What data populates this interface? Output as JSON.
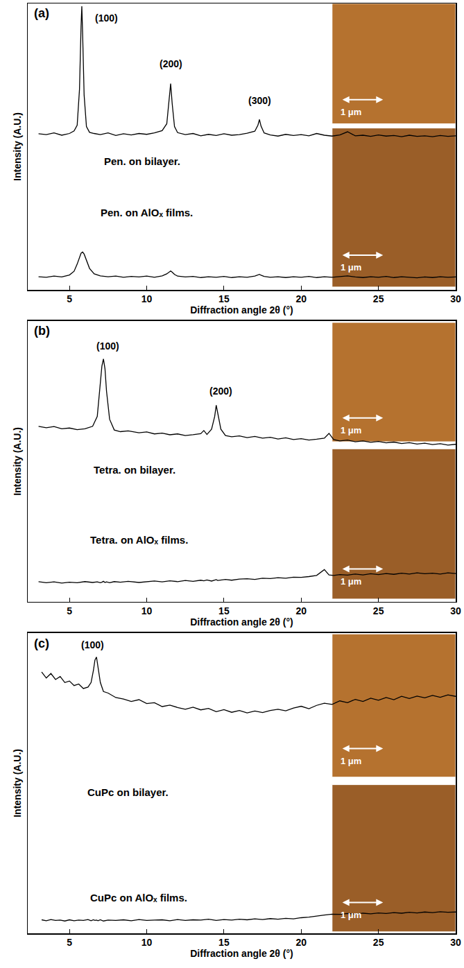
{
  "chart_data": [
    {
      "type": "line",
      "panel_label": "(a)",
      "x_label": "Diffraction angle 2θ (°)",
      "y_label": "Intensity (A.U.)",
      "xlim": [
        2.3,
        30
      ],
      "xticks": [
        5,
        10,
        15,
        20,
        25,
        30
      ],
      "ylim": [
        0,
        100
      ],
      "tick_labels": "x",
      "grid": false,
      "peak_labels": [
        "(100)",
        "(200)",
        "(300)"
      ],
      "scale_bars": [
        "1 μm",
        "1 μm"
      ],
      "series": [
        {
          "name": "Pen. on bilayer.",
          "color": "#000000",
          "x": [
            3.0,
            3.5,
            4.0,
            4.5,
            5.0,
            5.3,
            5.5,
            5.65,
            5.75,
            5.8,
            5.85,
            5.95,
            6.1,
            6.3,
            6.6,
            7.0,
            7.5,
            8.0,
            8.5,
            9.0,
            9.5,
            10.0,
            10.5,
            11.0,
            11.3,
            11.45,
            11.55,
            11.65,
            11.8,
            12.0,
            12.5,
            13.0,
            13.5,
            14.0,
            14.5,
            15.0,
            15.5,
            16.0,
            16.5,
            17.0,
            17.2,
            17.3,
            17.4,
            17.6,
            18.0,
            18.5,
            19.0,
            19.5,
            20.0,
            20.5,
            21.0,
            21.5,
            22.0,
            22.5,
            23.0,
            23.5,
            24.0,
            24.5,
            25.0,
            25.5,
            26.0,
            26.5,
            27.0,
            27.5,
            28.0,
            28.5,
            29.0,
            29.5,
            30.0
          ],
          "values": [
            54.5,
            54.2,
            54.8,
            54.0,
            54.6,
            55.5,
            57.5,
            70,
            92,
            99,
            90,
            68,
            57,
            55,
            54.6,
            54.2,
            54.8,
            53.9,
            54.5,
            54.1,
            54.6,
            54.3,
            54.8,
            55.6,
            58,
            66,
            72,
            65,
            57,
            54.9,
            54.2,
            54.6,
            53.8,
            54.3,
            53.9,
            54.5,
            54.0,
            54.2,
            54.7,
            55.4,
            57.5,
            59.5,
            57.2,
            54.8,
            54.1,
            53.7,
            54.3,
            53.9,
            54.2,
            53.8,
            54.6,
            54.0,
            53.7,
            54.1,
            55.2,
            53.8,
            54.0,
            53.6,
            54.1,
            53.7,
            53.9,
            53.5,
            54.0,
            53.6,
            53.8,
            53.5,
            53.9,
            53.6,
            53.8
          ]
        },
        {
          "name": "Pen. on AlOₓ films.",
          "color": "#000000",
          "x": [
            3.0,
            3.5,
            4.0,
            4.5,
            5.0,
            5.3,
            5.5,
            5.65,
            5.75,
            5.8,
            5.85,
            5.95,
            6.1,
            6.3,
            6.6,
            7.0,
            7.5,
            8.0,
            8.5,
            9.0,
            9.5,
            10.0,
            10.5,
            11.0,
            11.3,
            11.45,
            11.55,
            11.65,
            11.8,
            12.0,
            12.5,
            13.0,
            13.5,
            14.0,
            14.5,
            15.0,
            15.5,
            16.0,
            16.5,
            17.0,
            17.2,
            17.3,
            17.4,
            17.6,
            18.0,
            18.5,
            19.0,
            19.5,
            20.0,
            20.5,
            21.0,
            21.5,
            22.0,
            22.5,
            23.0,
            23.5,
            24.0,
            24.5,
            25.0,
            25.5,
            26.0,
            26.5,
            27.0,
            27.5,
            28.0,
            28.5,
            29.0,
            29.5,
            30.0
          ],
          "values": [
            4.6,
            4.4,
            4.8,
            4.5,
            5.2,
            6.5,
            9,
            11.5,
            12.8,
            13,
            13.2,
            12.5,
            10.5,
            7.5,
            5.6,
            4.9,
            4.6,
            4.8,
            4.4,
            4.7,
            4.5,
            4.8,
            4.4,
            4.9,
            5.6,
            6.3,
            6.6,
            6.2,
            5.4,
            4.8,
            4.5,
            4.7,
            4.3,
            4.6,
            4.4,
            4.7,
            4.3,
            4.6,
            4.4,
            4.8,
            5.2,
            5.4,
            5.1,
            4.7,
            4.4,
            4.6,
            4.3,
            4.6,
            4.4,
            4.7,
            4.3,
            4.6,
            4.4,
            4.7,
            4.9,
            4.5,
            4.3,
            4.6,
            4.4,
            4.7,
            4.3,
            4.6,
            4.4,
            4.2,
            4.5,
            4.3,
            4.6,
            4.4,
            4.5
          ]
        }
      ]
    },
    {
      "type": "line",
      "panel_label": "(b)",
      "x_label": "Diffraction angle 2θ (°)",
      "y_label": "Intensity (A.U.)",
      "xlim": [
        2.3,
        30
      ],
      "xticks": [
        5,
        10,
        15,
        20,
        25,
        30
      ],
      "ylim": [
        0,
        100
      ],
      "tick_labels": "x",
      "grid": false,
      "peak_labels": [
        "(100)",
        "(200)"
      ],
      "scale_bars": [
        "1 μm",
        "1 μm"
      ],
      "series": [
        {
          "name": "Tetra. on bilayer.",
          "color": "#000000",
          "x": [
            3,
            3.5,
            4,
            4.5,
            5,
            5.5,
            6,
            6.5,
            6.8,
            7.0,
            7.1,
            7.2,
            7.3,
            7.4,
            7.6,
            7.9,
            8.3,
            8.8,
            9.5,
            10,
            10.5,
            11,
            11.5,
            12,
            12.5,
            13,
            13.5,
            13.7,
            13.9,
            14.2,
            14.4,
            14.5,
            14.6,
            14.8,
            15.1,
            15.5,
            16,
            16.5,
            17,
            17.5,
            18,
            18.5,
            19,
            19.5,
            20,
            20.5,
            21,
            21.5,
            21.8,
            22.1,
            22.5,
            23,
            23.5,
            24,
            24.5,
            25,
            25.5,
            26,
            26.5,
            27,
            27.5,
            28,
            28.5,
            29,
            29.5,
            30
          ],
          "values": [
            62.5,
            62.0,
            62.4,
            61.6,
            61.9,
            61.3,
            61.6,
            62.5,
            66,
            78,
            84,
            86.5,
            83,
            75,
            65,
            61.2,
            60.6,
            60.9,
            60.2,
            60.5,
            59.8,
            60.1,
            59.5,
            59.8,
            59.2,
            59.5,
            59.9,
            61,
            59.6,
            61.5,
            66,
            70,
            67,
            61.5,
            59.2,
            58.8,
            59.1,
            58.5,
            58.9,
            58.3,
            58.6,
            58.0,
            58.4,
            57.8,
            58.1,
            57.6,
            57.9,
            58.3,
            60,
            57.8,
            57.3,
            57.6,
            57.0,
            57.3,
            56.8,
            57.1,
            56.6,
            56.9,
            56.4,
            56.7,
            56.2,
            56.5,
            56.0,
            56.3,
            55.8,
            56.1
          ]
        },
        {
          "name": "Tetra. on AlOₓ films.",
          "color": "#000000",
          "x": [
            3,
            3.5,
            4,
            4.5,
            5,
            5.5,
            6,
            6.5,
            6.8,
            7.0,
            7.1,
            7.2,
            7.3,
            7.4,
            7.6,
            7.9,
            8.3,
            8.8,
            9.5,
            10,
            10.5,
            11,
            11.5,
            12,
            12.5,
            13,
            13.5,
            13.7,
            13.9,
            14.2,
            14.4,
            14.5,
            14.6,
            14.8,
            15.1,
            15.5,
            16,
            16.5,
            17,
            17.5,
            18,
            18.5,
            19,
            19.5,
            20,
            20.5,
            21,
            21.5,
            21.8,
            22.1,
            22.5,
            23,
            23.5,
            24,
            24.5,
            25,
            25.5,
            26,
            26.5,
            27,
            27.5,
            28,
            28.5,
            29,
            29.5,
            30
          ],
          "values": [
            7.2,
            6.8,
            7.1,
            6.7,
            7.0,
            6.8,
            7.2,
            6.9,
            7.1,
            6.8,
            7.0,
            7.3,
            6.9,
            7.1,
            6.8,
            7.2,
            7.0,
            7.3,
            6.9,
            7.2,
            7.4,
            7.1,
            7.5,
            7.2,
            7.6,
            7.3,
            7.7,
            7.5,
            7.8,
            7.4,
            7.7,
            7.9,
            7.6,
            7.8,
            8.0,
            7.7,
            8.1,
            8.2,
            8.0,
            8.4,
            8.3,
            8.6,
            8.4,
            8.8,
            8.7,
            9.0,
            9.4,
            11.5,
            9.6,
            9.4,
            9.7,
            9.5,
            9.9,
            9.6,
            10.0,
            9.7,
            10.1,
            9.8,
            10.2,
            9.9,
            10.3,
            10.0,
            10.2,
            9.9,
            10.3,
            10.1
          ]
        }
      ]
    },
    {
      "type": "line",
      "panel_label": "(c)",
      "x_label": "Diffraction angle 2θ (°)",
      "y_label": "Intensity (A.U.)",
      "xlim": [
        2.3,
        30
      ],
      "xticks": [
        5,
        10,
        15,
        20,
        25,
        30
      ],
      "ylim": [
        0,
        100
      ],
      "tick_labels": "x",
      "grid": false,
      "peak_labels": [
        "(100)"
      ],
      "scale_bars": [
        "1 μm",
        "1 μm"
      ],
      "series": [
        {
          "name": "CuPc on bilayer.",
          "color": "#000000",
          "x": [
            3.2,
            3.5,
            3.8,
            4.1,
            4.4,
            4.7,
            5.0,
            5.3,
            5.6,
            5.9,
            6.2,
            6.4,
            6.55,
            6.65,
            6.75,
            6.85,
            7.0,
            7.2,
            7.5,
            8,
            8.5,
            9,
            9.5,
            10,
            10.5,
            11,
            11.5,
            12,
            12.5,
            13,
            13.5,
            14,
            14.5,
            15,
            15.5,
            16,
            16.5,
            17,
            17.5,
            18,
            18.5,
            19,
            19.5,
            20,
            20.5,
            21,
            21.5,
            22,
            22.5,
            23,
            23.5,
            24,
            24.5,
            25,
            25.5,
            26,
            26.5,
            27,
            27.5,
            28,
            28.5,
            29,
            29.5,
            30
          ],
          "values": [
            87,
            85,
            86.5,
            84.5,
            85.5,
            83.5,
            84,
            82.5,
            83,
            81.5,
            82,
            83.5,
            87.5,
            91,
            92,
            89,
            83.5,
            80.5,
            80,
            78.5,
            78,
            77.2,
            77.8,
            76.5,
            76.8,
            75.5,
            76,
            75.2,
            74.6,
            75.3,
            74.4,
            74.9,
            73.8,
            74.5,
            73.6,
            74.2,
            73.4,
            74,
            73.5,
            74.2,
            74.6,
            74.1,
            75,
            75.6,
            74.8,
            75.9,
            76.6,
            76.2,
            77.4,
            76.8,
            77.9,
            77.2,
            78.3,
            77.6,
            78.5,
            77.8,
            78.9,
            78.2,
            79,
            78.4,
            79.2,
            78.6,
            79.4,
            78.9
          ]
        },
        {
          "name": "CuPc on AlOₓ films.",
          "color": "#000000",
          "x": [
            3.2,
            3.5,
            3.8,
            4.1,
            4.4,
            4.7,
            5.0,
            5.3,
            5.6,
            5.9,
            6.2,
            6.4,
            6.55,
            6.65,
            6.75,
            6.85,
            7.0,
            7.2,
            7.5,
            8,
            8.5,
            9,
            9.5,
            10,
            10.5,
            11,
            11.5,
            12,
            12.5,
            13,
            13.5,
            14,
            14.5,
            15,
            15.5,
            16,
            16.5,
            17,
            17.5,
            18,
            18.5,
            19,
            19.5,
            20,
            20.5,
            21,
            21.5,
            22,
            22.5,
            23,
            23.5,
            24,
            24.5,
            25,
            25.5,
            26,
            26.5,
            27,
            27.5,
            28,
            28.5,
            29,
            29.5,
            30
          ],
          "values": [
            4.5,
            4.2,
            4.6,
            4.3,
            4.4,
            4.1,
            4.5,
            4.2,
            4.4,
            4.3,
            4.6,
            4.2,
            4.5,
            4.3,
            4.4,
            4.2,
            4.5,
            4.1,
            4.4,
            4.3,
            4.5,
            4.2,
            4.6,
            4.3,
            4.4,
            4.5,
            4.2,
            4.6,
            4.3,
            4.5,
            4.4,
            4.7,
            4.3,
            4.6,
            4.4,
            4.7,
            4.5,
            4.8,
            4.6,
            4.9,
            4.7,
            5.0,
            4.8,
            5.2,
            5.4,
            5.8,
            6.1,
            6.4,
            6.3,
            6.6,
            6.4,
            6.7,
            6.5,
            6.8,
            6.6,
            6.9,
            6.7,
            7.0,
            6.8,
            7.1,
            6.9,
            7.2,
            7.0,
            7.1
          ]
        }
      ]
    }
  ]
}
